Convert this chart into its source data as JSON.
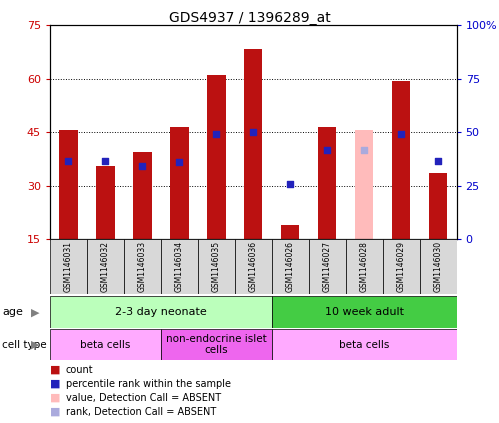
{
  "title": "GDS4937 / 1396289_at",
  "samples": [
    "GSM1146031",
    "GSM1146032",
    "GSM1146033",
    "GSM1146034",
    "GSM1146035",
    "GSM1146036",
    "GSM1146026",
    "GSM1146027",
    "GSM1146028",
    "GSM1146029",
    "GSM1146030"
  ],
  "count_values": [
    45.5,
    35.5,
    39.5,
    46.5,
    61.0,
    68.5,
    19.0,
    46.5,
    null,
    59.5,
    33.5
  ],
  "rank_values": [
    37.0,
    37.0,
    35.5,
    36.5,
    44.5,
    45.0,
    30.5,
    40.0,
    null,
    44.5,
    37.0
  ],
  "count_absent": [
    null,
    null,
    null,
    null,
    null,
    null,
    null,
    null,
    45.5,
    null,
    null
  ],
  "rank_absent": [
    null,
    null,
    null,
    null,
    null,
    null,
    null,
    null,
    40.0,
    null,
    null
  ],
  "bar_color": "#bb1111",
  "rank_color": "#2222bb",
  "absent_bar_color": "#ffbbbb",
  "absent_rank_color": "#aaaadd",
  "ylim_left": [
    15,
    75
  ],
  "ylim_right": [
    0,
    100
  ],
  "yticks_left": [
    15,
    30,
    45,
    60,
    75
  ],
  "yticks_right": [
    0,
    25,
    50,
    75,
    100
  ],
  "ytick_labels_right": [
    "0",
    "25",
    "50",
    "75",
    "100%"
  ],
  "bar_bottom": 15,
  "age_groups": [
    {
      "label": "2-3 day neonate",
      "start": 0,
      "end": 6,
      "color": "#bbffbb"
    },
    {
      "label": "10 week adult",
      "start": 6,
      "end": 11,
      "color": "#44cc44"
    }
  ],
  "cell_type_groups": [
    {
      "label": "beta cells",
      "start": 0,
      "end": 3,
      "color": "#ffaaff"
    },
    {
      "label": "non-endocrine islet\ncells",
      "start": 3,
      "end": 6,
      "color": "#ee66ee"
    },
    {
      "label": "beta cells",
      "start": 6,
      "end": 11,
      "color": "#ffaaff"
    }
  ],
  "legend_items": [
    {
      "label": "count",
      "color": "#bb1111"
    },
    {
      "label": "percentile rank within the sample",
      "color": "#2222bb"
    },
    {
      "label": "value, Detection Call = ABSENT",
      "color": "#ffbbbb"
    },
    {
      "label": "rank, Detection Call = ABSENT",
      "color": "#aaaadd"
    }
  ],
  "background_color": "#ffffff",
  "plot_bg": "#ffffff",
  "bar_width": 0.5
}
